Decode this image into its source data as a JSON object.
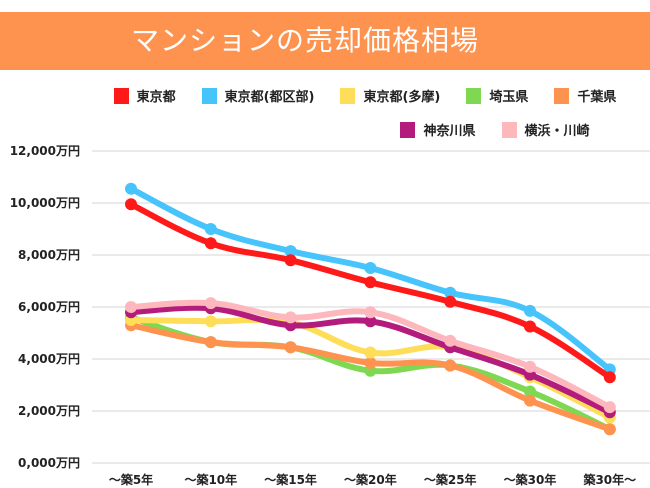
{
  "chart_data": {
    "type": "line",
    "title": "マンションの売却価格相場",
    "categories": [
      "〜築5年",
      "〜築10年",
      "〜築15年",
      "〜築20年",
      "〜築25年",
      "〜築30年",
      "築30年〜"
    ],
    "yticks": [
      "0,000万円",
      "2,000万円",
      "4,000万円",
      "6,000万円",
      "8,000万円",
      "10,000万円",
      "12,000万円"
    ],
    "ylim": [
      0,
      12000
    ],
    "yunit": "万円",
    "grid": true,
    "legend_position": "top",
    "series": [
      {
        "name": "東京都",
        "color": "#ff1a1a",
        "values": [
          9950,
          8450,
          7800,
          6950,
          6200,
          5250,
          3300
        ]
      },
      {
        "name": "東京都(都区部)",
        "color": "#47c4fc",
        "values": [
          10550,
          9000,
          8150,
          7500,
          6550,
          5850,
          3600
        ]
      },
      {
        "name": "東京都(多摩)",
        "color": "#fedd58",
        "values": [
          5500,
          5450,
          5400,
          4250,
          4450,
          3300,
          1750
        ]
      },
      {
        "name": "埼玉県",
        "color": "#7fd852",
        "values": [
          5600,
          4650,
          4450,
          3550,
          3750,
          2750,
          1300
        ]
      },
      {
        "name": "千葉県",
        "color": "#fe934f",
        "values": [
          5300,
          4650,
          4450,
          3850,
          3750,
          2400,
          1300
        ]
      },
      {
        "name": "神奈川県",
        "color": "#b31c7c",
        "values": [
          5800,
          5950,
          5300,
          5450,
          4450,
          3400,
          1950
        ]
      },
      {
        "name": "横浜・川崎",
        "color": "#feb7bd",
        "values": [
          6000,
          6150,
          5600,
          5800,
          4700,
          3700,
          2150
        ]
      }
    ]
  }
}
